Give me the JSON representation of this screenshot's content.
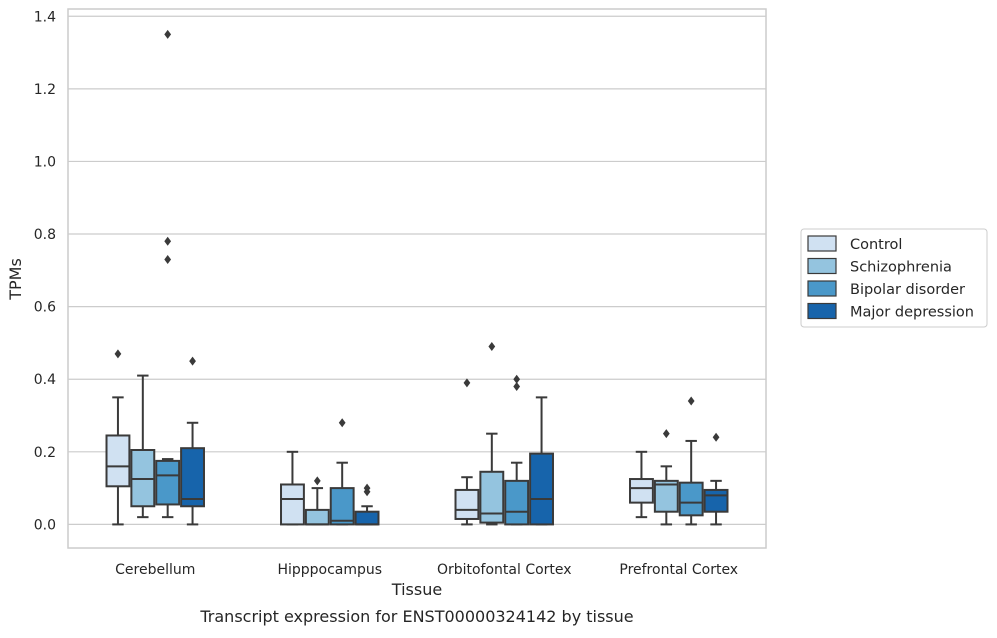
{
  "chart_data": {
    "type": "boxplot",
    "title": "",
    "caption": "Transcript expression for ENST00000324142 by tissue",
    "xlabel": "Tissue",
    "ylabel": "TPMs",
    "ylim": [
      -0.065,
      1.42
    ],
    "yticks": [
      0.0,
      0.2,
      0.4,
      0.6,
      0.8,
      1.0,
      1.2,
      1.4
    ],
    "ytick_labels": [
      "0.0",
      "0.2",
      "0.4",
      "0.6",
      "0.8",
      "1.0",
      "1.2",
      "1.4"
    ],
    "grid": "horizontal",
    "legend_position": "right",
    "categories": [
      "Cerebellum",
      "Hipppocampus",
      "Orbitofontal Cortex",
      "Prefrontal Cortex"
    ],
    "series": [
      {
        "name": "Control",
        "color": "#d0e1f2",
        "boxes": [
          {
            "whislo": 0.0,
            "q1": 0.105,
            "med": 0.16,
            "q3": 0.245,
            "whishi": 0.35,
            "fliers": [
              0.47
            ]
          },
          {
            "whislo": 0.0,
            "q1": 0.0,
            "med": 0.07,
            "q3": 0.11,
            "whishi": 0.2,
            "fliers": []
          },
          {
            "whislo": 0.0,
            "q1": 0.015,
            "med": 0.04,
            "q3": 0.095,
            "whishi": 0.13,
            "fliers": [
              0.39
            ]
          },
          {
            "whislo": 0.02,
            "q1": 0.06,
            "med": 0.1,
            "q3": 0.125,
            "whishi": 0.2,
            "fliers": []
          }
        ]
      },
      {
        "name": "Schizophrenia",
        "color": "#94c4df",
        "boxes": [
          {
            "whislo": 0.02,
            "q1": 0.05,
            "med": 0.125,
            "q3": 0.205,
            "whishi": 0.41,
            "fliers": []
          },
          {
            "whislo": 0.0,
            "q1": 0.0,
            "med": 0.0,
            "q3": 0.04,
            "whishi": 0.1,
            "fliers": [
              0.12
            ]
          },
          {
            "whislo": 0.0,
            "q1": 0.005,
            "med": 0.03,
            "q3": 0.145,
            "whishi": 0.25,
            "fliers": [
              0.49
            ]
          },
          {
            "whislo": 0.0,
            "q1": 0.035,
            "med": 0.11,
            "q3": 0.12,
            "whishi": 0.16,
            "fliers": [
              0.25
            ]
          }
        ]
      },
      {
        "name": "Bipolar disorder",
        "color": "#4a98c9",
        "boxes": [
          {
            "whislo": 0.02,
            "q1": 0.055,
            "med": 0.135,
            "q3": 0.175,
            "whishi": 0.18,
            "fliers": [
              0.73,
              0.78,
              1.35
            ]
          },
          {
            "whislo": 0.0,
            "q1": 0.0,
            "med": 0.01,
            "q3": 0.1,
            "whishi": 0.17,
            "fliers": [
              0.28
            ]
          },
          {
            "whislo": 0.0,
            "q1": 0.0,
            "med": 0.035,
            "q3": 0.12,
            "whishi": 0.17,
            "fliers": [
              0.38,
              0.4
            ]
          },
          {
            "whislo": 0.0,
            "q1": 0.025,
            "med": 0.06,
            "q3": 0.115,
            "whishi": 0.23,
            "fliers": [
              0.34
            ]
          }
        ]
      },
      {
        "name": "Major depression",
        "color": "#1764ab",
        "boxes": [
          {
            "whislo": 0.0,
            "q1": 0.05,
            "med": 0.07,
            "q3": 0.21,
            "whishi": 0.28,
            "fliers": [
              0.45
            ]
          },
          {
            "whislo": 0.0,
            "q1": 0.0,
            "med": 0.0,
            "q3": 0.035,
            "whishi": 0.05,
            "fliers": [
              0.09,
              0.1
            ]
          },
          {
            "whislo": 0.0,
            "q1": 0.0,
            "med": 0.07,
            "q3": 0.195,
            "whishi": 0.35,
            "fliers": []
          },
          {
            "whislo": 0.0,
            "q1": 0.035,
            "med": 0.08,
            "q3": 0.095,
            "whishi": 0.12,
            "fliers": [
              0.24
            ]
          }
        ]
      }
    ],
    "colors": {
      "grid": "#cccccc",
      "frame": "#cccccc",
      "box_edge": "#3a3a3a",
      "text": "#262626"
    }
  }
}
